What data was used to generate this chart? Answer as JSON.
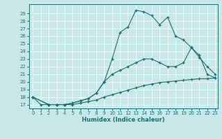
{
  "xlabel": "Humidex (Indice chaleur)",
  "background_color": "#c8e8e8",
  "line_color": "#1a7070",
  "xlim": [
    -0.5,
    23.3
  ],
  "ylim": [
    16.5,
    30.2
  ],
  "yticks": [
    17,
    18,
    19,
    20,
    21,
    22,
    23,
    24,
    25,
    26,
    27,
    28,
    29
  ],
  "xticks": [
    0,
    1,
    2,
    3,
    4,
    5,
    6,
    7,
    8,
    9,
    10,
    11,
    12,
    13,
    14,
    15,
    16,
    17,
    18,
    19,
    20,
    21,
    22,
    23
  ],
  "series1_x": [
    0,
    1,
    2,
    3,
    4,
    5,
    6,
    7,
    8,
    9,
    10,
    11,
    12,
    13,
    14,
    15,
    16,
    17,
    18,
    19,
    20,
    21,
    22,
    23
  ],
  "series1_y": [
    18,
    17,
    17,
    17,
    17,
    17.2,
    17.5,
    17.8,
    18.5,
    20,
    23,
    26.5,
    27.2,
    29.4,
    29.2,
    28.7,
    27.5,
    28.5,
    26,
    25.5,
    24.5,
    23.5,
    21,
    20.5
  ],
  "series2_x": [
    0,
    2,
    3,
    4,
    5,
    6,
    7,
    8,
    9,
    10,
    11,
    12,
    13,
    14,
    15,
    16,
    17,
    18,
    19,
    20,
    21,
    22,
    23
  ],
  "series2_y": [
    18,
    17,
    17,
    17,
    17.2,
    17.5,
    17.8,
    18.5,
    20,
    21,
    21.5,
    22,
    22.5,
    23,
    23,
    22.5,
    22,
    22,
    22.5,
    24.5,
    23.2,
    22,
    21
  ],
  "series3_x": [
    0,
    2,
    3,
    4,
    5,
    6,
    7,
    8,
    9,
    10,
    11,
    12,
    13,
    14,
    15,
    16,
    17,
    18,
    19,
    20,
    21,
    22,
    23
  ],
  "series3_y": [
    18,
    17,
    17,
    17,
    17,
    17.2,
    17.4,
    17.6,
    18.0,
    18.3,
    18.6,
    18.9,
    19.2,
    19.5,
    19.7,
    19.9,
    20.0,
    20.1,
    20.2,
    20.3,
    20.4,
    20.4,
    20.5
  ]
}
